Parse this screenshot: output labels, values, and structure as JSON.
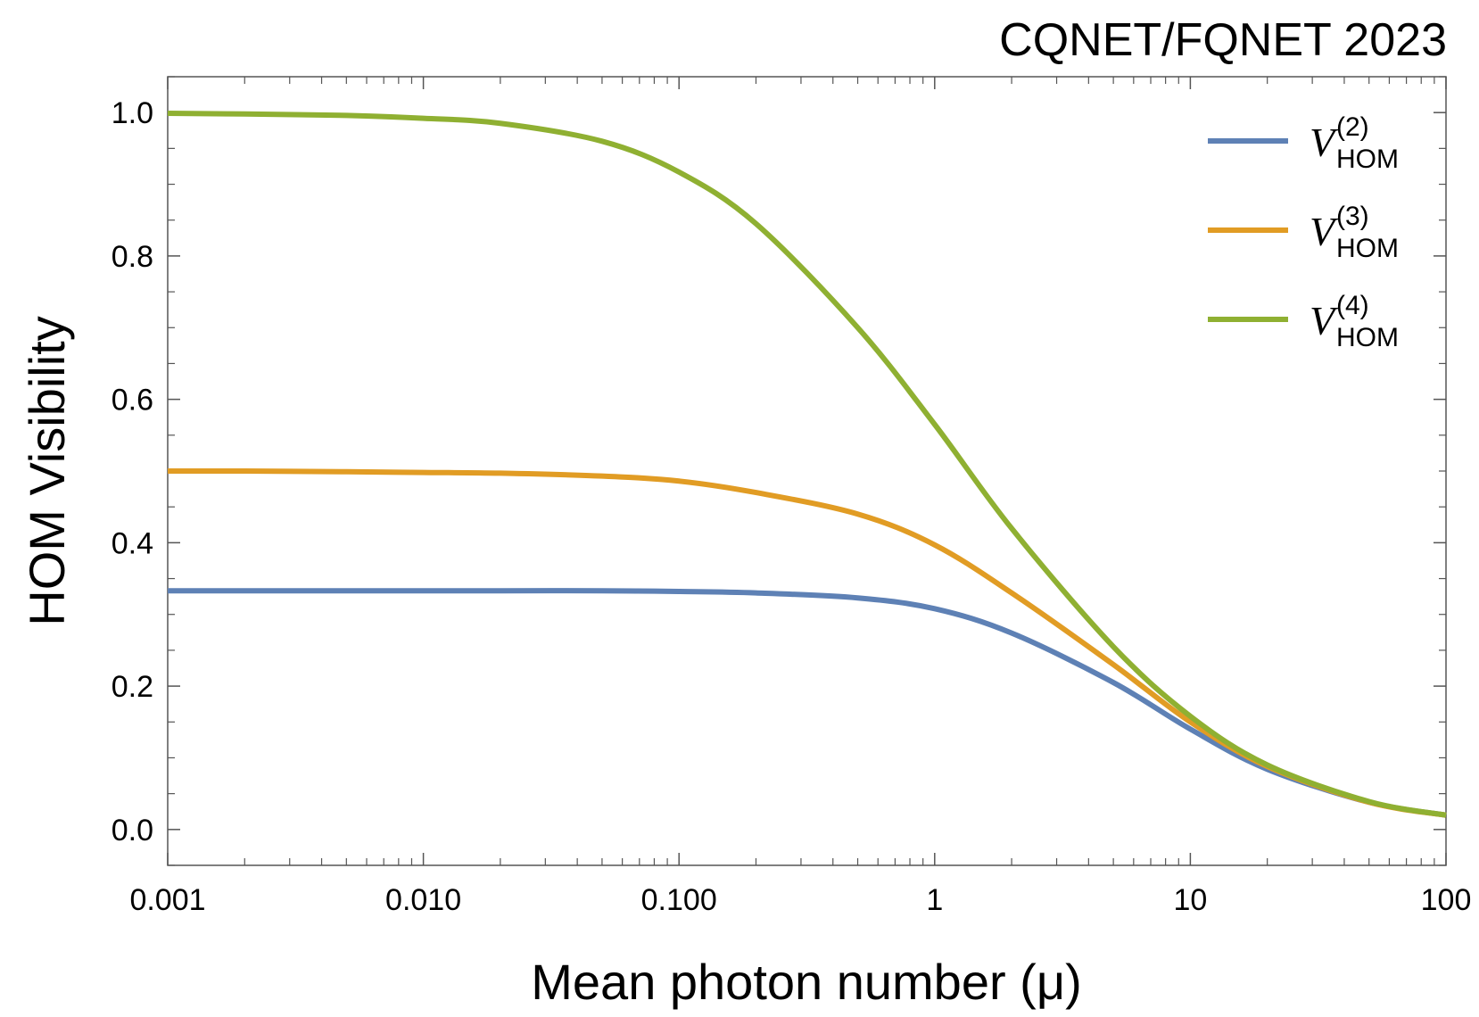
{
  "header": "CQNET/FQNET 2023",
  "chart_data": {
    "type": "line",
    "title": "",
    "xlabel": "Mean photon number (μ)",
    "ylabel": "HOM Visibility",
    "xscale": "log",
    "xlim": [
      0.001,
      100
    ],
    "ylim": [
      -0.05,
      1.05
    ],
    "xticks": [
      {
        "value": 0.001,
        "label": "0.001"
      },
      {
        "value": 0.01,
        "label": "0.010"
      },
      {
        "value": 0.1,
        "label": "0.100"
      },
      {
        "value": 1,
        "label": "1"
      },
      {
        "value": 10,
        "label": "10"
      },
      {
        "value": 100,
        "label": "100"
      }
    ],
    "yticks": [
      {
        "value": 0.0,
        "label": "0.0"
      },
      {
        "value": 0.2,
        "label": "0.2"
      },
      {
        "value": 0.4,
        "label": "0.4"
      },
      {
        "value": 0.6,
        "label": "0.6"
      },
      {
        "value": 0.8,
        "label": "0.8"
      },
      {
        "value": 1.0,
        "label": "1.0"
      }
    ],
    "grid": false,
    "legend_position": "top-right",
    "x": [
      0.001,
      0.002,
      0.005,
      0.01,
      0.02,
      0.05,
      0.1,
      0.2,
      0.5,
      1,
      2,
      5,
      10,
      20,
      50,
      100
    ],
    "series": [
      {
        "name": "V",
        "superscript": "(2)",
        "subscript": "HOM",
        "color": "#5e81b5",
        "values": [
          0.333,
          0.333,
          0.333,
          0.333,
          0.333,
          0.333,
          0.332,
          0.33,
          0.323,
          0.308,
          0.274,
          0.205,
          0.14,
          0.084,
          0.038,
          0.02
        ]
      },
      {
        "name": "V",
        "superscript": "(3)",
        "subscript": "HOM",
        "color": "#e19c24",
        "values": [
          0.5,
          0.5,
          0.499,
          0.498,
          0.497,
          0.493,
          0.486,
          0.47,
          0.44,
          0.397,
          0.33,
          0.23,
          0.15,
          0.088,
          0.038,
          0.02
        ]
      },
      {
        "name": "V",
        "superscript": "(4)",
        "subscript": "HOM",
        "color": "#8fb032",
        "values": [
          0.999,
          0.998,
          0.996,
          0.992,
          0.985,
          0.96,
          0.917,
          0.845,
          0.7,
          0.565,
          0.42,
          0.255,
          0.158,
          0.09,
          0.039,
          0.02
        ]
      }
    ]
  }
}
